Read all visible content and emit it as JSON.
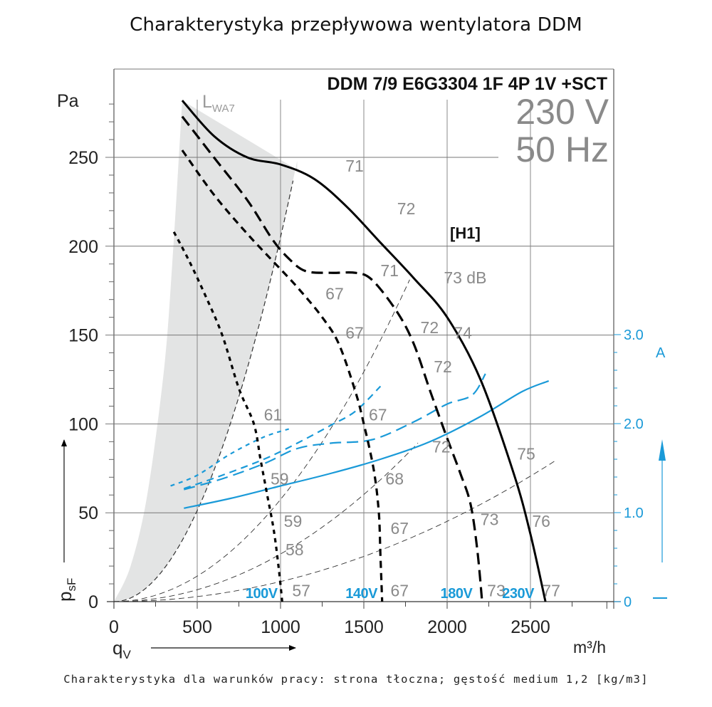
{
  "title": "Charakterystyka przepływowa wentylatora DDM",
  "footer": "Charakterystyka dla warunków pracy: strona tłoczna; gęstość medium 1,2 [kg/m3]",
  "chart_data": {
    "type": "line",
    "title": "Charakterystyka przepływowa wentylatora DDM",
    "model": "DDM 7/9 E6G3304 1F 4P 1V +SCT",
    "supply": [
      "230 V",
      "50 Hz"
    ],
    "curve_tag": "[H1]",
    "xlabel": "q_V",
    "xlabel_main": "q",
    "xlabel_sub": "V",
    "xunit": "m³/h",
    "ylabel": "p_sF",
    "ylabel_main": "p",
    "ylabel_sub": "sF",
    "yunit": "Pa",
    "y2unit": "A",
    "sound_label_main": "L",
    "sound_label_sub": "WA7",
    "xlim": [
      0,
      2950
    ],
    "ylim": [
      0,
      300
    ],
    "y2lim": [
      0,
      6.0
    ],
    "grid": true,
    "xticks": [
      0,
      500,
      1000,
      1500,
      2000,
      2500
    ],
    "xtick_labels": [
      "0",
      "500",
      "1000",
      "1500",
      "2000",
      "2500"
    ],
    "yticks": [
      0,
      50,
      100,
      150,
      200,
      250
    ],
    "ytick_labels": [
      "0",
      "50",
      "100",
      "150",
      "200",
      "250"
    ],
    "y2ticks": [
      0,
      1.0,
      2.0,
      3.0
    ],
    "y2tick_labels": [
      "0",
      "1.0",
      "2.0",
      "3.0"
    ],
    "pressure_series": [
      {
        "name": "230V",
        "style": "solid",
        "points": [
          [
            410,
            282
          ],
          [
            600,
            262
          ],
          [
            800,
            250
          ],
          [
            1000,
            246
          ],
          [
            1200,
            238
          ],
          [
            1400,
            222
          ],
          [
            1600,
            202
          ],
          [
            1800,
            182
          ],
          [
            2000,
            160
          ],
          [
            2200,
            125
          ],
          [
            2400,
            72
          ],
          [
            2500,
            38
          ],
          [
            2590,
            0
          ]
        ]
      },
      {
        "name": "180V",
        "style": "longdash",
        "points": [
          [
            410,
            273
          ],
          [
            600,
            250
          ],
          [
            800,
            226
          ],
          [
            950,
            204
          ],
          [
            1050,
            193
          ],
          [
            1150,
            186
          ],
          [
            1300,
            185
          ],
          [
            1450,
            185
          ],
          [
            1550,
            181
          ],
          [
            1700,
            163
          ],
          [
            1800,
            145
          ],
          [
            1900,
            118
          ],
          [
            2000,
            92
          ],
          [
            2080,
            72
          ],
          [
            2140,
            55
          ],
          [
            2180,
            30
          ],
          [
            2210,
            0
          ]
        ]
      },
      {
        "name": "140V",
        "style": "dash",
        "points": [
          [
            410,
            254
          ],
          [
            600,
            229
          ],
          [
            800,
            207
          ],
          [
            950,
            192
          ],
          [
            1100,
            177
          ],
          [
            1250,
            160
          ],
          [
            1350,
            145
          ],
          [
            1450,
            118
          ],
          [
            1500,
            100
          ],
          [
            1560,
            74
          ],
          [
            1590,
            50
          ],
          [
            1600,
            25
          ],
          [
            1610,
            0
          ]
        ]
      },
      {
        "name": "100V",
        "style": "shortdash",
        "points": [
          [
            360,
            208
          ],
          [
            450,
            192
          ],
          [
            550,
            172
          ],
          [
            650,
            150
          ],
          [
            750,
            120
          ],
          [
            840,
            100
          ],
          [
            880,
            80
          ],
          [
            920,
            60
          ],
          [
            960,
            40
          ],
          [
            990,
            18
          ],
          [
            1010,
            0
          ]
        ]
      }
    ],
    "current_series": [
      {
        "name": "230V",
        "style": "solid",
        "points": [
          [
            420,
            1.05
          ],
          [
            700,
            1.16
          ],
          [
            1000,
            1.3
          ],
          [
            1300,
            1.44
          ],
          [
            1600,
            1.6
          ],
          [
            1900,
            1.8
          ],
          [
            2200,
            2.08
          ],
          [
            2450,
            2.36
          ],
          [
            2610,
            2.48
          ]
        ]
      },
      {
        "name": "180V",
        "style": "longdash",
        "points": [
          [
            420,
            1.26
          ],
          [
            650,
            1.38
          ],
          [
            900,
            1.55
          ],
          [
            1100,
            1.72
          ],
          [
            1300,
            1.78
          ],
          [
            1550,
            1.82
          ],
          [
            1800,
            2.02
          ],
          [
            2000,
            2.22
          ],
          [
            2150,
            2.32
          ],
          [
            2230,
            2.56
          ]
        ]
      },
      {
        "name": "140V",
        "style": "dash",
        "points": [
          [
            420,
            1.27
          ],
          [
            650,
            1.42
          ],
          [
            900,
            1.6
          ],
          [
            1100,
            1.78
          ],
          [
            1300,
            1.98
          ],
          [
            1450,
            2.14
          ],
          [
            1600,
            2.42
          ]
        ]
      },
      {
        "name": "100V",
        "style": "shortdash",
        "points": [
          [
            340,
            1.3
          ],
          [
            500,
            1.42
          ],
          [
            700,
            1.66
          ],
          [
            900,
            1.85
          ],
          [
            1050,
            1.94
          ]
        ]
      }
    ],
    "system_curves": [
      {
        "name": "system-1",
        "k": 0.000205
      },
      {
        "name": "system-2",
        "k": 5.75e-05
      },
      {
        "name": "system-3",
        "k": 2.68e-05
      },
      {
        "name": "system-4",
        "k": 1.13e-05
      }
    ],
    "unstable_region_left": [
      [
        0,
        0
      ],
      [
        100,
        20
      ],
      [
        200,
        60
      ],
      [
        300,
        130
      ],
      [
        350,
        190
      ],
      [
        410,
        282
      ]
    ],
    "db_labels": [
      {
        "text": "71",
        "x": 1390,
        "y": 242
      },
      {
        "text": "72",
        "x": 1700,
        "y": 218
      },
      {
        "text": "73 dB",
        "x": 1980,
        "y": 179
      },
      {
        "text": "74",
        "x": 2040,
        "y": 148
      },
      {
        "text": "75",
        "x": 2420,
        "y": 80
      },
      {
        "text": "76",
        "x": 2510,
        "y": 42
      },
      {
        "text": "77",
        "x": 2570,
        "y": 3
      },
      {
        "text": "71",
        "x": 1600,
        "y": 183
      },
      {
        "text": "72",
        "x": 1840,
        "y": 151
      },
      {
        "text": "72",
        "x": 1920,
        "y": 129
      },
      {
        "text": "72",
        "x": 1910,
        "y": 84
      },
      {
        "text": "73",
        "x": 2200,
        "y": 43
      },
      {
        "text": "73",
        "x": 2240,
        "y": 3
      },
      {
        "text": "67",
        "x": 1270,
        "y": 170
      },
      {
        "text": "67",
        "x": 1390,
        "y": 148
      },
      {
        "text": "67",
        "x": 1530,
        "y": 102
      },
      {
        "text": "68",
        "x": 1630,
        "y": 66
      },
      {
        "text": "67",
        "x": 1660,
        "y": 38
      },
      {
        "text": "67",
        "x": 1660,
        "y": 3
      },
      {
        "text": "61",
        "x": 900,
        "y": 102
      },
      {
        "text": "59",
        "x": 940,
        "y": 66
      },
      {
        "text": "59",
        "x": 1020,
        "y": 42
      },
      {
        "text": "58",
        "x": 1030,
        "y": 26
      },
      {
        "text": "57",
        "x": 1070,
        "y": 3
      }
    ],
    "voltage_labels": [
      {
        "text": "100V",
        "x": 790
      },
      {
        "text": "140V",
        "x": 1390
      },
      {
        "text": "180V",
        "x": 1960
      },
      {
        "text": "230V",
        "x": 2330
      }
    ]
  }
}
